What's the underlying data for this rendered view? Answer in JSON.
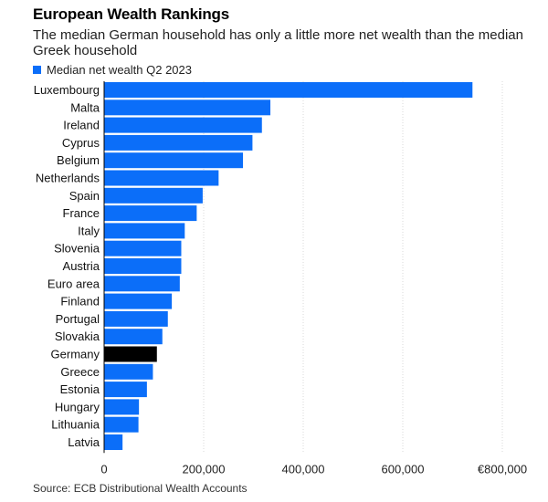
{
  "chart_data": {
    "type": "bar",
    "orientation": "horizontal",
    "title": "European Wealth Rankings",
    "subtitle": "The median German household has only a little more net wealth than the median Greek household",
    "source": "Source: ECB Distributional Wealth Accounts",
    "categories": [
      "Luxembourg",
      "Malta",
      "Ireland",
      "Cyprus",
      "Belgium",
      "Netherlands",
      "Spain",
      "France",
      "Italy",
      "Slovenia",
      "Austria",
      "Euro area",
      "Finland",
      "Portugal",
      "Slovakia",
      "Germany",
      "Greece",
      "Estonia",
      "Hungary",
      "Lithuania",
      "Latvia"
    ],
    "series": [
      {
        "name": "Median net wealth Q2 2023",
        "values": [
          740000,
          334000,
          317000,
          298000,
          279000,
          230000,
          198000,
          186000,
          162000,
          155000,
          155000,
          152000,
          136000,
          128000,
          117000,
          106000,
          98000,
          86000,
          70000,
          69000,
          37000
        ]
      }
    ],
    "highlight": "Germany",
    "colors": {
      "bar": "#0b6ef9",
      "highlight": "#000000"
    },
    "xlim": [
      0,
      800000
    ],
    "xticks": [
      0,
      200000,
      400000,
      600000,
      800000
    ],
    "xtick_labels": [
      "0",
      "200,000",
      "400,000",
      "600,000",
      "€800,000"
    ],
    "grid": "vertical",
    "legend_position": "top-left"
  }
}
